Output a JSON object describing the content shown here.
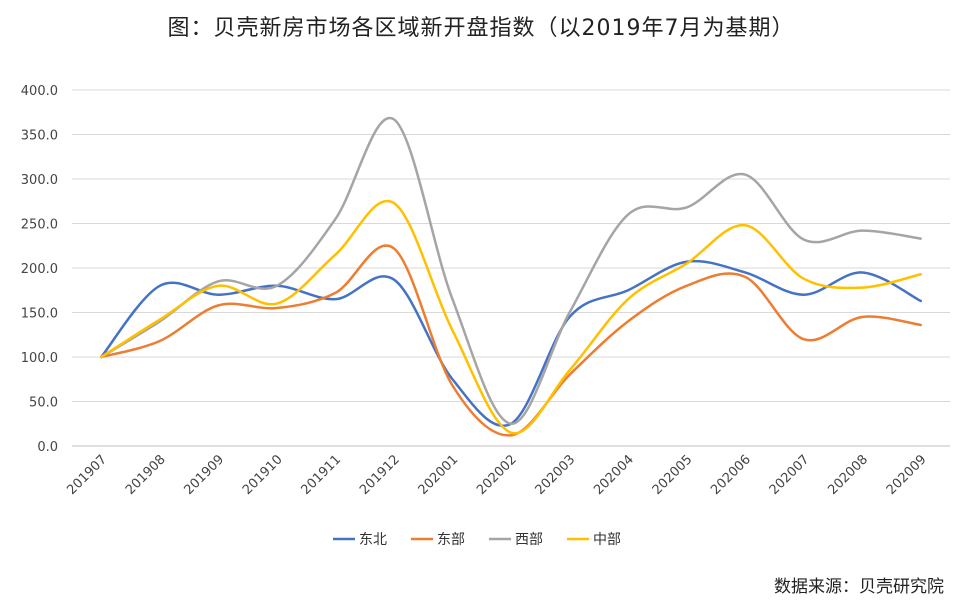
{
  "chart_data": {
    "type": "line",
    "title": "图：贝壳新房市场各区域新开盘指数（以2019年7月为基期）",
    "xlabel": "",
    "ylabel": "",
    "ylim": [
      0,
      400
    ],
    "yticks": [
      "0.0",
      "50.0",
      "100.0",
      "150.0",
      "200.0",
      "250.0",
      "300.0",
      "350.0",
      "400.0"
    ],
    "grid": true,
    "legend": "bottom",
    "smooth": true,
    "categories": [
      "201907",
      "201908",
      "201909",
      "201910",
      "201911",
      "201912",
      "202001",
      "202002",
      "202003",
      "202004",
      "202005",
      "202006",
      "202007",
      "202008",
      "202009"
    ],
    "series": [
      {
        "name": "东北",
        "color": "#4472C4",
        "values": [
          100,
          180,
          170,
          180,
          165,
          187,
          75,
          25,
          145,
          175,
          207,
          195,
          170,
          195,
          163
        ]
      },
      {
        "name": "东部",
        "color": "#ED7D31",
        "values": [
          100,
          118,
          158,
          155,
          172,
          222,
          68,
          12,
          80,
          140,
          180,
          190,
          120,
          145,
          136
        ]
      },
      {
        "name": "西部",
        "color": "#A5A5A5",
        "values": [
          100,
          140,
          185,
          180,
          255,
          367,
          165,
          25,
          150,
          260,
          268,
          305,
          232,
          242,
          233
        ]
      },
      {
        "name": "中部",
        "color": "#FFC000",
        "values": [
          100,
          142,
          180,
          160,
          215,
          273,
          130,
          15,
          85,
          165,
          205,
          248,
          188,
          178,
          193
        ]
      }
    ]
  },
  "source": "数据来源：贝壳研究院"
}
